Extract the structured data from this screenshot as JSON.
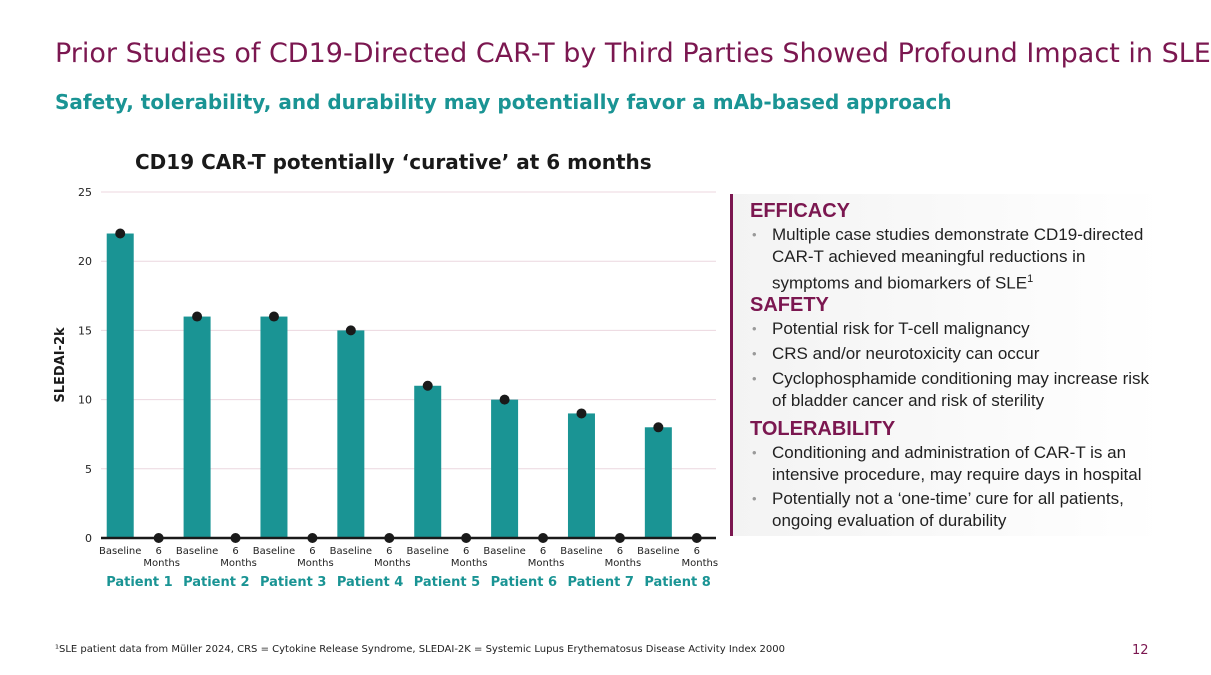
{
  "header": {
    "title": "Prior Studies of CD19-Directed CAR-T by Third Parties Showed Profound Impact in SLE",
    "subtitle": "Safety, tolerability, and durability may potentially favor a mAb-based approach"
  },
  "chart_data": {
    "type": "bar",
    "title": "CD19 CAR-T potentially ‘curative’ at 6 months",
    "ylabel": "SLEDAI-2k",
    "ylim": [
      0,
      25
    ],
    "yticks": [
      0,
      5,
      10,
      15,
      20,
      25
    ],
    "bar_color": "#1a9494",
    "marker_color": "#1a1a1a",
    "grid": true,
    "groups": [
      {
        "patient": "Patient 1",
        "baseline": 22,
        "six_months": 0
      },
      {
        "patient": "Patient 2",
        "baseline": 16,
        "six_months": 0
      },
      {
        "patient": "Patient 3",
        "baseline": 16,
        "six_months": 0
      },
      {
        "patient": "Patient 4",
        "baseline": 15,
        "six_months": 0
      },
      {
        "patient": "Patient 5",
        "baseline": 11,
        "six_months": 0
      },
      {
        "patient": "Patient 6",
        "baseline": 10,
        "six_months": 0
      },
      {
        "patient": "Patient 7",
        "baseline": 9,
        "six_months": 0
      },
      {
        "patient": "Patient 8",
        "baseline": 8,
        "six_months": 0
      }
    ],
    "category_labels": {
      "baseline": "Baseline",
      "six_months_line1": "6",
      "six_months_line2": "Months"
    }
  },
  "panel": {
    "efficacy": {
      "heading": "EFFICACY",
      "bullets": [
        "Multiple case studies demonstrate CD19-directed CAR-T achieved meaningful reductions in symptoms and biomarkers of SLE"
      ],
      "superscript": "1"
    },
    "safety": {
      "heading": "SAFETY",
      "bullets": [
        "Potential risk for T-cell malignancy",
        "CRS and/or neurotoxicity can occur",
        "Cyclophosphamide conditioning may increase risk of bladder cancer and risk of sterility"
      ]
    },
    "tolerability": {
      "heading": "TOLERABILITY",
      "bullets": [
        "Conditioning and administration of CAR-T is an intensive procedure, may require days in hospital",
        "Potentially not a ‘one-time’ cure for all patients, ongoing evaluation of durability"
      ]
    },
    "bullet_char": "•"
  },
  "footer": {
    "footnote": "¹SLE patient data from Müller 2024, CRS = Cytokine Release Syndrome, SLEDAI-2K = Systemic Lupus Erythematosus Disease Activity Index 2000",
    "page_number": "12"
  }
}
